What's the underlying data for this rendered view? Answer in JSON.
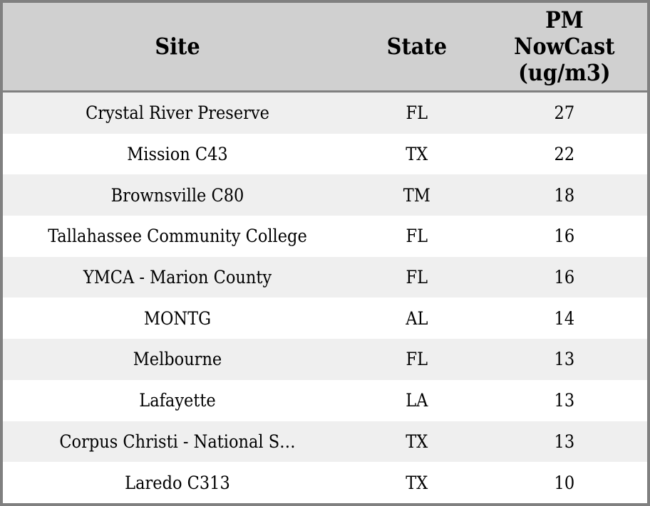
{
  "colors": {
    "border": "#808080",
    "header_bg": "#d0d0d0",
    "row_stripe_bg": "#efefef",
    "row_plain_bg": "#ffffff",
    "text": "#000000"
  },
  "table": {
    "header": {
      "site": "Site",
      "state": "State",
      "pm_lines": [
        "PM",
        "NowCast",
        "(ug/m3)"
      ]
    },
    "rows": [
      {
        "site": "Crystal River Preserve",
        "state": "FL",
        "value": "27"
      },
      {
        "site": "Mission C43",
        "state": "TX",
        "value": "22"
      },
      {
        "site": "Brownsville C80",
        "state": "TM",
        "value": "18"
      },
      {
        "site": "Tallahassee Community College",
        "state": "FL",
        "value": "16"
      },
      {
        "site": "YMCA - Marion County",
        "state": "FL",
        "value": "16"
      },
      {
        "site": "MONTG",
        "state": "AL",
        "value": "14"
      },
      {
        "site": "Melbourne",
        "state": "FL",
        "value": "13"
      },
      {
        "site": "Lafayette",
        "state": "LA",
        "value": "13"
      },
      {
        "site": "Corpus Christi - National S…",
        "state": "TX",
        "value": "13"
      },
      {
        "site": "Laredo C313",
        "state": "TX",
        "value": "10"
      }
    ]
  },
  "chart_data": {
    "type": "table",
    "columns": [
      "Site",
      "State",
      "PM NowCast (ug/m3)"
    ],
    "rows": [
      [
        "Crystal River Preserve",
        "FL",
        27
      ],
      [
        "Mission C43",
        "TX",
        22
      ],
      [
        "Brownsville C80",
        "TM",
        18
      ],
      [
        "Tallahassee Community College",
        "FL",
        16
      ],
      [
        "YMCA - Marion County",
        "FL",
        16
      ],
      [
        "MONTG",
        "AL",
        14
      ],
      [
        "Melbourne",
        "FL",
        13
      ],
      [
        "Lafayette",
        "LA",
        13
      ],
      [
        "Corpus Christi - National S…",
        "TX",
        13
      ],
      [
        "Laredo C313",
        "TX",
        10
      ]
    ],
    "layout": {
      "striped": true,
      "stripe_starts_on_first_row": true,
      "text_align": "center",
      "gridlines": "none"
    }
  }
}
